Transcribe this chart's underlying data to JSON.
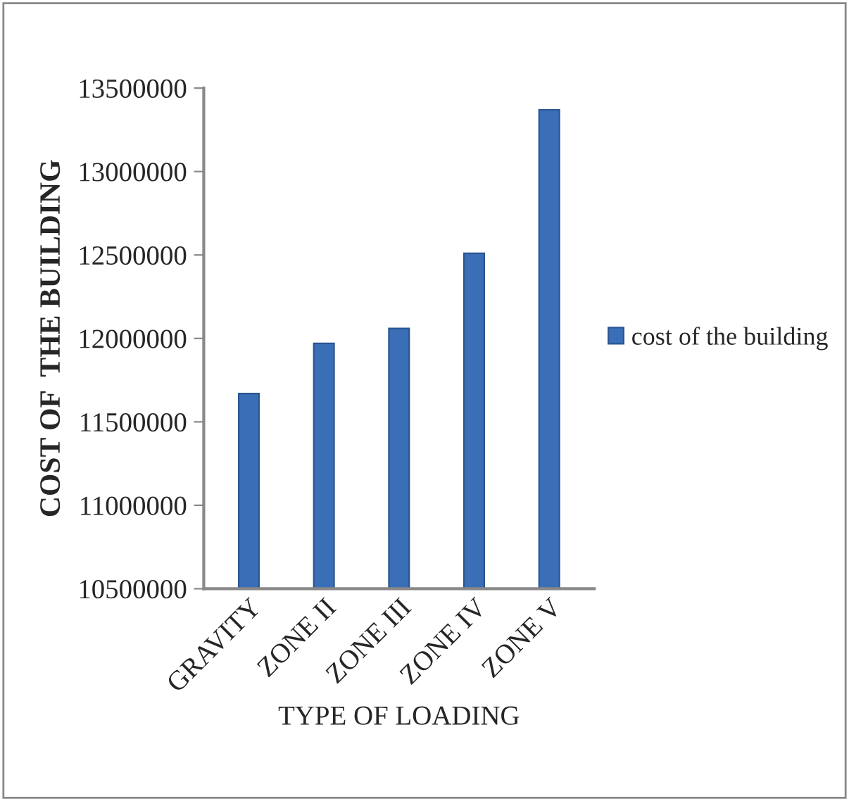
{
  "chart_data": {
    "type": "bar",
    "categories": [
      "GRAVITY",
      "ZONE II",
      "ZONE III",
      "ZONE IV",
      "ZONE V"
    ],
    "series": [
      {
        "name": "cost of the building",
        "color": "#3a6fb8",
        "values": [
          11670000,
          11970000,
          12060000,
          12510000,
          13370000
        ]
      }
    ],
    "xlabel": "TYPE OF LOADING",
    "ylabel": "COST OF  THE BUILDING",
    "ylim": [
      10500000,
      13500000
    ],
    "yticks": [
      10500000,
      11000000,
      11500000,
      12000000,
      12500000,
      13000000,
      13500000
    ],
    "grid": false,
    "legend": "right"
  }
}
